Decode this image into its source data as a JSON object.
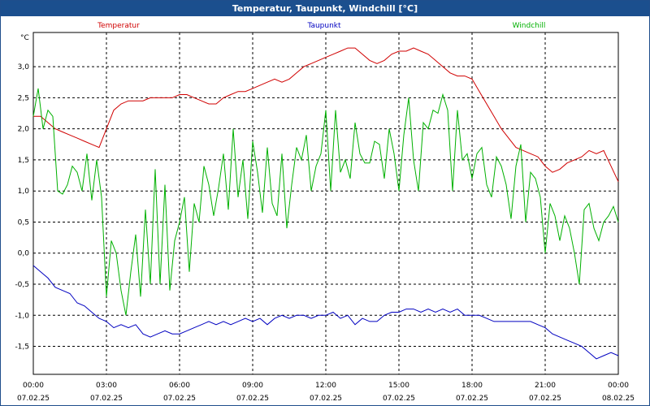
{
  "chart_data": {
    "type": "line",
    "title": "Temperatur, Taupunkt, Windchill [°C]",
    "ylabel": "°C",
    "ylim": [
      -1.95,
      3.55
    ],
    "yticks": [
      3.0,
      2.5,
      2.0,
      1.5,
      1.0,
      0.5,
      0.0,
      -0.5,
      -1.0,
      -1.5
    ],
    "ytick_labels": [
      "3,0",
      "2,5",
      "2,0",
      "1,5",
      "1,0",
      "0,5",
      "0,0",
      "-0,5",
      "-1,0",
      "-1,5"
    ],
    "xlim": [
      0,
      24
    ],
    "xticks": [
      {
        "h": 0,
        "time": "00:00",
        "date": "07.02.25"
      },
      {
        "h": 3,
        "time": "03:00",
        "date": "07.02.25"
      },
      {
        "h": 6,
        "time": "06:00",
        "date": "07.02.25"
      },
      {
        "h": 9,
        "time": "09:00",
        "date": "07.02.25"
      },
      {
        "h": 12,
        "time": "12:00",
        "date": "07.02.25"
      },
      {
        "h": 15,
        "time": "15:00",
        "date": "07.02.25"
      },
      {
        "h": 18,
        "time": "18:00",
        "date": "07.02.25"
      },
      {
        "h": 21,
        "time": "21:00",
        "date": "07.02.25"
      },
      {
        "h": 24,
        "time": "00:00",
        "date": "08.02.25"
      }
    ],
    "grid": true,
    "series": [
      {
        "name": "Temperatur",
        "color": "#d00000",
        "x": [
          0,
          0.3,
          0.6,
          0.9,
          1.2,
          1.5,
          1.8,
          2.1,
          2.4,
          2.7,
          3.0,
          3.3,
          3.6,
          3.9,
          4.2,
          4.5,
          4.8,
          5.1,
          5.4,
          5.7,
          6.0,
          6.3,
          6.6,
          6.9,
          7.2,
          7.5,
          7.8,
          8.1,
          8.4,
          8.7,
          9.0,
          9.3,
          9.6,
          9.9,
          10.2,
          10.5,
          10.8,
          11.1,
          11.4,
          11.7,
          12.0,
          12.3,
          12.6,
          12.9,
          13.2,
          13.5,
          13.8,
          14.1,
          14.4,
          14.7,
          15.0,
          15.3,
          15.6,
          15.9,
          16.2,
          16.5,
          16.8,
          17.1,
          17.4,
          17.7,
          18.0,
          18.3,
          18.6,
          18.9,
          19.2,
          19.5,
          19.8,
          20.1,
          20.4,
          20.7,
          21.0,
          21.3,
          21.6,
          21.9,
          22.2,
          22.5,
          22.8,
          23.1,
          23.4,
          23.7,
          24.0
        ],
        "values": [
          2.2,
          2.2,
          2.1,
          2.0,
          1.95,
          1.9,
          1.85,
          1.8,
          1.75,
          1.7,
          2.0,
          2.3,
          2.4,
          2.45,
          2.45,
          2.45,
          2.5,
          2.5,
          2.5,
          2.5,
          2.55,
          2.55,
          2.5,
          2.45,
          2.4,
          2.4,
          2.5,
          2.55,
          2.6,
          2.6,
          2.65,
          2.7,
          2.75,
          2.8,
          2.75,
          2.8,
          2.9,
          3.0,
          3.05,
          3.1,
          3.15,
          3.2,
          3.25,
          3.3,
          3.3,
          3.2,
          3.1,
          3.05,
          3.1,
          3.2,
          3.25,
          3.25,
          3.3,
          3.25,
          3.2,
          3.1,
          3.0,
          2.9,
          2.85,
          2.85,
          2.8,
          2.6,
          2.4,
          2.2,
          2.0,
          1.85,
          1.7,
          1.65,
          1.6,
          1.55,
          1.4,
          1.3,
          1.35,
          1.45,
          1.5,
          1.55,
          1.65,
          1.6,
          1.65,
          1.4,
          1.15
        ]
      },
      {
        "name": "Taupunkt",
        "color": "#0000c0",
        "x": [
          0,
          0.3,
          0.6,
          0.9,
          1.2,
          1.5,
          1.8,
          2.1,
          2.4,
          2.7,
          3.0,
          3.3,
          3.6,
          3.9,
          4.2,
          4.5,
          4.8,
          5.1,
          5.4,
          5.7,
          6.0,
          6.3,
          6.6,
          6.9,
          7.2,
          7.5,
          7.8,
          8.1,
          8.4,
          8.7,
          9.0,
          9.3,
          9.6,
          9.9,
          10.2,
          10.5,
          10.8,
          11.1,
          11.4,
          11.7,
          12.0,
          12.3,
          12.6,
          12.9,
          13.2,
          13.5,
          13.8,
          14.1,
          14.4,
          14.7,
          15.0,
          15.3,
          15.6,
          15.9,
          16.2,
          16.5,
          16.8,
          17.1,
          17.4,
          17.7,
          18.0,
          18.3,
          18.6,
          18.9,
          19.2,
          19.5,
          19.8,
          20.1,
          20.4,
          20.7,
          21.0,
          21.3,
          21.6,
          21.9,
          22.2,
          22.5,
          22.8,
          23.1,
          23.4,
          23.7,
          24.0
        ],
        "values": [
          -0.2,
          -0.3,
          -0.4,
          -0.55,
          -0.6,
          -0.65,
          -0.8,
          -0.85,
          -0.95,
          -1.05,
          -1.1,
          -1.2,
          -1.15,
          -1.2,
          -1.15,
          -1.3,
          -1.35,
          -1.3,
          -1.25,
          -1.3,
          -1.3,
          -1.25,
          -1.2,
          -1.15,
          -1.1,
          -1.15,
          -1.1,
          -1.15,
          -1.1,
          -1.05,
          -1.1,
          -1.05,
          -1.15,
          -1.05,
          -1.0,
          -1.05,
          -1.0,
          -1.0,
          -1.05,
          -1.0,
          -1.0,
          -0.95,
          -1.05,
          -1.0,
          -1.15,
          -1.05,
          -1.1,
          -1.1,
          -1.0,
          -0.95,
          -0.95,
          -0.9,
          -0.9,
          -0.95,
          -0.9,
          -0.95,
          -0.9,
          -0.95,
          -0.9,
          -1.0,
          -1.0,
          -1.0,
          -1.05,
          -1.1,
          -1.1,
          -1.1,
          -1.1,
          -1.1,
          -1.1,
          -1.15,
          -1.2,
          -1.3,
          -1.35,
          -1.4,
          -1.45,
          -1.5,
          -1.6,
          -1.7,
          -1.65,
          -1.6,
          -1.65
        ]
      },
      {
        "name": "Windchill",
        "color": "#00b000",
        "x": [
          0,
          0.2,
          0.4,
          0.6,
          0.8,
          1.0,
          1.2,
          1.4,
          1.6,
          1.8,
          2.0,
          2.2,
          2.4,
          2.6,
          2.8,
          3.0,
          3.2,
          3.4,
          3.6,
          3.8,
          4.0,
          4.2,
          4.4,
          4.6,
          4.8,
          5.0,
          5.2,
          5.4,
          5.6,
          5.8,
          6.0,
          6.2,
          6.4,
          6.6,
          6.8,
          7.0,
          7.2,
          7.4,
          7.6,
          7.8,
          8.0,
          8.2,
          8.4,
          8.6,
          8.8,
          9.0,
          9.2,
          9.4,
          9.6,
          9.8,
          10.0,
          10.2,
          10.4,
          10.6,
          10.8,
          11.0,
          11.2,
          11.4,
          11.6,
          11.8,
          12.0,
          12.2,
          12.4,
          12.6,
          12.8,
          13.0,
          13.2,
          13.4,
          13.6,
          13.8,
          14.0,
          14.2,
          14.4,
          14.6,
          14.8,
          15.0,
          15.2,
          15.4,
          15.6,
          15.8,
          16.0,
          16.2,
          16.4,
          16.6,
          16.8,
          17.0,
          17.2,
          17.4,
          17.6,
          17.8,
          18.0,
          18.2,
          18.4,
          18.6,
          18.8,
          19.0,
          19.2,
          19.4,
          19.6,
          19.8,
          20.0,
          20.2,
          20.4,
          20.6,
          20.8,
          21.0,
          21.2,
          21.4,
          21.6,
          21.8,
          22.0,
          22.2,
          22.4,
          22.6,
          22.8,
          23.0,
          23.2,
          23.4,
          23.6,
          23.8,
          24.0
        ],
        "values": [
          2.2,
          2.65,
          2.0,
          2.3,
          2.2,
          1.0,
          0.95,
          1.1,
          1.4,
          1.3,
          1.0,
          1.6,
          0.85,
          1.5,
          0.9,
          -0.7,
          0.2,
          0.0,
          -0.6,
          -1.0,
          -0.3,
          0.3,
          -0.7,
          0.7,
          -0.5,
          1.35,
          -0.5,
          1.1,
          -0.6,
          0.2,
          0.5,
          0.9,
          -0.3,
          0.8,
          0.5,
          1.4,
          1.1,
          0.6,
          1.05,
          1.6,
          0.7,
          2.0,
          0.9,
          1.5,
          0.55,
          1.8,
          1.3,
          0.65,
          1.7,
          0.8,
          0.6,
          1.6,
          0.4,
          1.1,
          1.7,
          1.5,
          1.9,
          1.0,
          1.4,
          1.6,
          2.3,
          1.0,
          2.3,
          1.3,
          1.5,
          1.2,
          2.1,
          1.6,
          1.45,
          1.45,
          1.8,
          1.75,
          1.2,
          2.0,
          1.6,
          1.0,
          1.9,
          2.5,
          1.5,
          1.0,
          2.1,
          2.0,
          2.3,
          2.25,
          2.55,
          2.3,
          1.0,
          2.3,
          1.5,
          1.6,
          1.2,
          1.6,
          1.7,
          1.1,
          0.9,
          1.55,
          1.4,
          1.1,
          0.55,
          1.4,
          1.75,
          0.5,
          1.3,
          1.2,
          0.9,
          0.0,
          0.8,
          0.6,
          0.2,
          0.6,
          0.4,
          0.0,
          -0.5,
          0.7,
          0.8,
          0.4,
          0.2,
          0.5,
          0.6,
          0.75,
          0.5
        ]
      }
    ]
  }
}
